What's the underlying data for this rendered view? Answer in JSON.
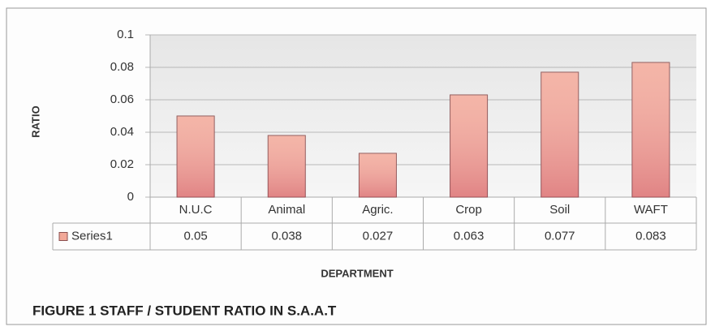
{
  "chart_data": {
    "type": "bar",
    "title": "FIGURE 1  STAFF / STUDENT RATIO IN S.A.A.T",
    "x_label": "DEPARTMENT",
    "y_label": "RATIO",
    "categories": [
      "N.U.C",
      "Animal",
      "Agric.",
      "Crop",
      "Soil",
      "WAFT"
    ],
    "series": [
      {
        "name": "Series1",
        "color": "#f2a898",
        "values": [
          0.05,
          0.038,
          0.027,
          0.063,
          0.077,
          0.083
        ]
      }
    ],
    "ylim": [
      0,
      0.1
    ],
    "yticks": [
      0,
      0.02,
      0.04,
      0.06,
      0.08,
      0.1
    ],
    "grid": true
  }
}
